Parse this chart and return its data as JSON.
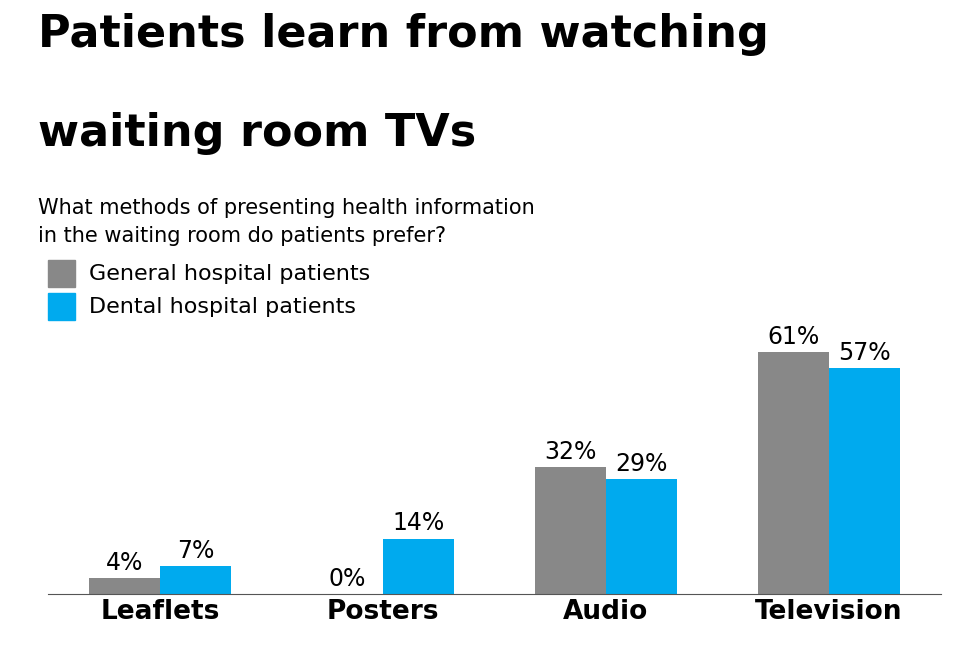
{
  "title_line1": "Patients learn from watching",
  "title_line2": "waiting room TVs",
  "subtitle": "What methods of presenting health information\nin the waiting room do patients prefer?",
  "categories": [
    "Leaflets",
    "Posters",
    "Audio",
    "Television"
  ],
  "general": [
    4,
    0,
    32,
    61
  ],
  "dental": [
    7,
    14,
    29,
    57
  ],
  "general_label": "General hospital patients",
  "dental_label": "Dental hospital patients",
  "general_color": "#888888",
  "dental_color": "#00AAEE",
  "background_color": "#FFFFFF",
  "bar_width": 0.32,
  "ylim": [
    0,
    70
  ],
  "title_fontsize": 32,
  "subtitle_fontsize": 15,
  "value_fontsize": 17,
  "legend_fontsize": 16,
  "xticklabel_fontsize": 19
}
